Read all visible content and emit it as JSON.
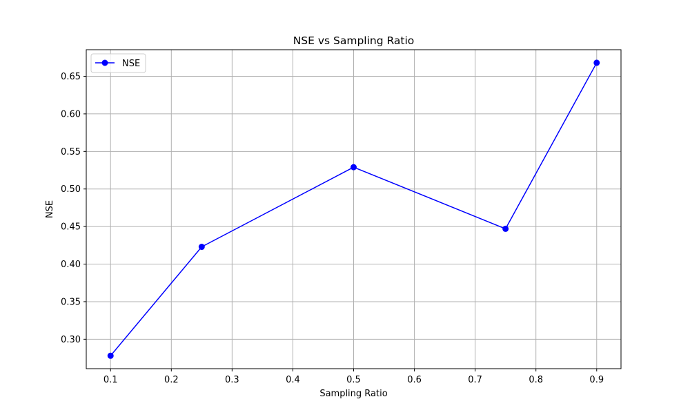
{
  "chart_data": {
    "type": "line",
    "title": "NSE vs Sampling Ratio",
    "xlabel": "Sampling Ratio",
    "ylabel": "NSE",
    "xlim": [
      0.06,
      0.94
    ],
    "ylim": [
      0.2608,
      0.6854
    ],
    "x_ticks": [
      0.1,
      0.2,
      0.3,
      0.4,
      0.5,
      0.6,
      0.7,
      0.8,
      0.9
    ],
    "x_tick_labels": [
      "0.1",
      "0.2",
      "0.3",
      "0.4",
      "0.5",
      "0.6",
      "0.7",
      "0.8",
      "0.9"
    ],
    "y_ticks": [
      0.3,
      0.35,
      0.4,
      0.45,
      0.5,
      0.55,
      0.6,
      0.65
    ],
    "y_tick_labels": [
      "0.30",
      "0.35",
      "0.40",
      "0.45",
      "0.50",
      "0.55",
      "0.60",
      "0.65"
    ],
    "grid": true,
    "legend_position": "top-left",
    "series": [
      {
        "name": "NSE",
        "color": "#0000ff",
        "marker": "circle",
        "x": [
          0.1,
          0.25,
          0.5,
          0.75,
          0.9
        ],
        "y": [
          0.278,
          0.423,
          0.529,
          0.447,
          0.668
        ]
      }
    ]
  }
}
